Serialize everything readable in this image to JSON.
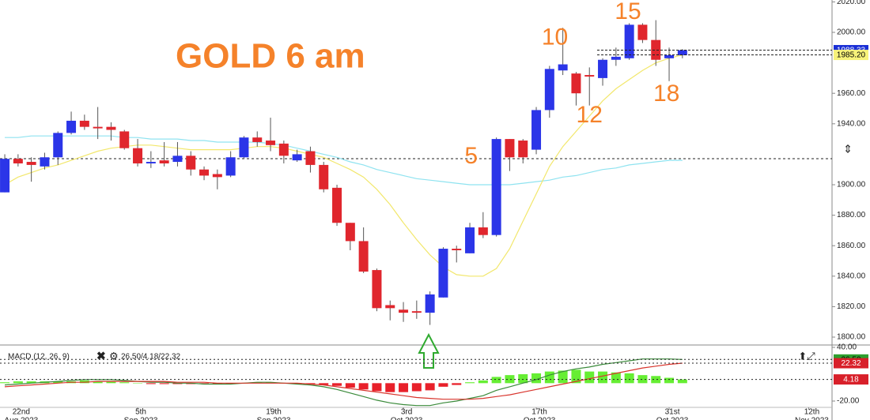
{
  "chart_data": [
    {
      "type": "candlestick",
      "title": "GOLD 6 am",
      "xlim": [
        -0.36,
        62.26
      ],
      "ylim": [
        1794.82,
        2021.24
      ],
      "yticks": [
        {
          "value": 1800,
          "label": "1800.00"
        },
        {
          "value": 1820,
          "label": "1820.00"
        },
        {
          "value": 1840,
          "label": "1840.00"
        },
        {
          "value": 1860,
          "label": "1860.00"
        },
        {
          "value": 1880,
          "label": "1880.00"
        },
        {
          "value": 1900,
          "label": "1900.00"
        },
        {
          "value": 1940,
          "label": "1940.00"
        },
        {
          "value": 1960,
          "label": "1960.00"
        },
        {
          "value": 2000,
          "label": "2000.00"
        },
        {
          "value": 2020,
          "label": "2020.00"
        }
      ],
      "up_color": "#2b35e8",
      "down_color": "#e0262d",
      "open": [
        1895,
        1917,
        1915,
        1912,
        1918,
        1934,
        1942,
        1938,
        1938,
        1935,
        1924,
        1914,
        1916,
        1915,
        1919,
        1910,
        1907,
        1906,
        1918,
        1931,
        1929,
        1927,
        1916,
        1922,
        1913,
        1898,
        1875,
        1863,
        1844,
        1821,
        1818,
        1817,
        1816,
        1826,
        1858,
        1855,
        1872,
        1867,
        1930,
        1929,
        1923,
        1949,
        1975,
        1973,
        1972,
        1970,
        1982,
        1983,
        2005,
        1995,
        1983,
        1985
      ],
      "high": [
        1920,
        1920,
        1918,
        1921,
        1935,
        1948,
        1946,
        1951,
        1941,
        1936,
        1930,
        1922,
        1928,
        1928,
        1922,
        1912,
        1910,
        1922,
        1932,
        1935,
        1944,
        1929,
        1923,
        1925,
        1915,
        1900,
        1875,
        1872,
        1845,
        1824,
        1823,
        1824,
        1830,
        1859,
        1860,
        1875,
        1882,
        1931,
        1930,
        1930,
        1951,
        1978,
        2003,
        1974,
        1977,
        1983,
        1990,
        2006,
        2006,
        2008,
        1990,
        1989
      ],
      "low": [
        1895,
        1912,
        1902,
        1910,
        1913,
        1933,
        1936,
        1930,
        1929,
        1923,
        1912,
        1911,
        1912,
        1912,
        1906,
        1903,
        1897,
        1905,
        1917,
        1925,
        1922,
        1914,
        1915,
        1908,
        1895,
        1873,
        1857,
        1842,
        1817,
        1811,
        1810,
        1812,
        1808,
        1826,
        1849,
        1855,
        1865,
        1866,
        1909,
        1914,
        1920,
        1944,
        1972,
        1952,
        1952,
        1965,
        1978,
        1982,
        1993,
        1978,
        1968,
        1983
      ],
      "close": [
        1917,
        1914,
        1913,
        1918,
        1934,
        1942,
        1938,
        1937,
        1936,
        1924,
        1914,
        1915,
        1914,
        1919,
        1910,
        1906,
        1905,
        1918,
        1931,
        1928,
        1926,
        1919,
        1920,
        1913,
        1897,
        1875,
        1863,
        1843,
        1819,
        1819,
        1816,
        1816,
        1828,
        1858,
        1857,
        1872,
        1867,
        1930,
        1918,
        1918,
        1949,
        1976,
        1979,
        1960,
        1971,
        1982,
        1984,
        2005,
        1995,
        1982,
        1985,
        1988.33
      ],
      "series": [
        {
          "color": "#8fe3f0",
          "values": [
            1931,
            1931,
            1932,
            1932,
            1932,
            1932,
            1932,
            1932,
            1932,
            1931,
            1931,
            1930,
            1930,
            1930,
            1929,
            1929,
            1928,
            1928,
            1928,
            1928,
            1927,
            1926,
            1924,
            1922,
            1920,
            1918,
            1915,
            1913,
            1910,
            1908,
            1906,
            1904,
            1903,
            1902,
            1901,
            1900,
            1900,
            1900,
            1900,
            1901,
            1902,
            1903,
            1905,
            1906,
            1908,
            1910,
            1911,
            1913,
            1914,
            1915,
            1916,
            1916
          ]
        },
        {
          "color": "#f2e76b",
          "values": [
            1900,
            1905,
            1908,
            1911,
            1913,
            1916,
            1919,
            1922,
            1924,
            1925,
            1926,
            1926,
            1925,
            1924,
            1923,
            1923,
            1923,
            1923,
            1924,
            1925,
            1925,
            1924,
            1922,
            1920,
            1918,
            1914,
            1910,
            1905,
            1897,
            1887,
            1875,
            1864,
            1854,
            1846,
            1841,
            1840,
            1840,
            1845,
            1858,
            1876,
            1894,
            1912,
            1925,
            1935,
            1945,
            1955,
            1963,
            1969,
            1975,
            1980,
            1983,
            1985.2
          ]
        }
      ],
      "price_tags": [
        {
          "value": 1988.33,
          "label": "1988.33",
          "color": "#1a2fd6",
          "text_color": "#ffffff"
        },
        {
          "value": 1985.2,
          "label": "1985.20",
          "color": "#f7f27a",
          "text_color": "#000000"
        }
      ],
      "annotations": [
        {
          "text": "5",
          "x": 35.1,
          "y": 1918
        },
        {
          "text": "10",
          "x": 41.4,
          "y": 1996
        },
        {
          "text": "12",
          "x": 44.0,
          "y": 1945
        },
        {
          "text": "15",
          "x": 46.9,
          "y": 2013
        },
        {
          "text": "18",
          "x": 49.8,
          "y": 1959
        }
      ],
      "annotation_color": "#f5822a"
    },
    {
      "type": "macd",
      "title": "MACD (12, 26, 9)",
      "readout": "26.50/4.18/22.32",
      "xlim": [
        -0.36,
        62.26
      ],
      "ylim": [
        -27.06,
        42.65
      ],
      "yticks": [
        {
          "value": 40,
          "label": "40.00"
        },
        {
          "value": -20,
          "label": "-20.00"
        }
      ],
      "xticks": [
        {
          "value": 1,
          "label": "22nd",
          "sublabel": "Aug 2023"
        },
        {
          "value": 10,
          "label": "5th",
          "sublabel": "Sep 2023"
        },
        {
          "value": 20,
          "label": "19th",
          "sublabel": "Sep 2023"
        },
        {
          "value": 30,
          "label": "3rd",
          "sublabel": "Oct 2023"
        },
        {
          "value": 40,
          "label": "17th",
          "sublabel": "Oct 2023"
        },
        {
          "value": 50,
          "label": "31st",
          "sublabel": "Oct 2023"
        },
        {
          "value": 60.5,
          "label": "12th",
          "sublabel": "Nov 2023"
        }
      ],
      "histogram": {
        "pos_color": "#66ee33",
        "neg_color": "#e8202a",
        "values": [
          1,
          2,
          2,
          2,
          2,
          2,
          3,
          2,
          2,
          1,
          0,
          -1,
          -1,
          -1,
          -1,
          -1,
          -1,
          -1,
          0,
          1,
          1,
          0,
          -1,
          -1,
          -2,
          -3,
          -5,
          -7,
          -9,
          -10,
          -10,
          -9,
          -8,
          -4,
          -2,
          1,
          3,
          7,
          9,
          10,
          11,
          13,
          14,
          15,
          13,
          13,
          12,
          11,
          9,
          8,
          6,
          4.18
        ]
      },
      "series": [
        {
          "color": "#3a8a3a",
          "values": [
            -2,
            -1,
            0,
            1,
            2,
            3,
            4,
            4,
            4,
            3,
            2,
            1,
            1,
            0,
            0,
            -1,
            -1,
            -1,
            0,
            1,
            1,
            0,
            -1,
            -2,
            -4,
            -7,
            -11,
            -15,
            -19,
            -22,
            -24,
            -25,
            -25,
            -22,
            -20,
            -17,
            -14,
            -8,
            -4,
            0,
            4,
            9,
            13,
            16,
            18,
            21,
            23,
            25,
            27,
            27,
            27,
            26.5
          ]
        },
        {
          "color": "#d8342c",
          "values": [
            -4,
            -3,
            -2,
            -1,
            0,
            1,
            1,
            2,
            2,
            2,
            2,
            2,
            2,
            1,
            1,
            1,
            0,
            0,
            0,
            0,
            0,
            0,
            0,
            -1,
            -2,
            -4,
            -6,
            -8,
            -10,
            -12,
            -14,
            -16,
            -17,
            -18,
            -18,
            -18,
            -17,
            -15,
            -13,
            -10,
            -7,
            -4,
            -1,
            2,
            5,
            8,
            11,
            14,
            17,
            19,
            21,
            22.32
          ]
        }
      ],
      "value_tags": [
        {
          "value": 26.5,
          "label": "26.50",
          "color": "#2e9e2e",
          "text_color": "#000000"
        },
        {
          "value": 22.32,
          "label": "22.32",
          "color": "#d8202a",
          "text_color": "#ffffff"
        },
        {
          "value": 4.18,
          "label": "4.18",
          "color": "#d8202a",
          "text_color": "#ffffff"
        }
      ]
    }
  ]
}
